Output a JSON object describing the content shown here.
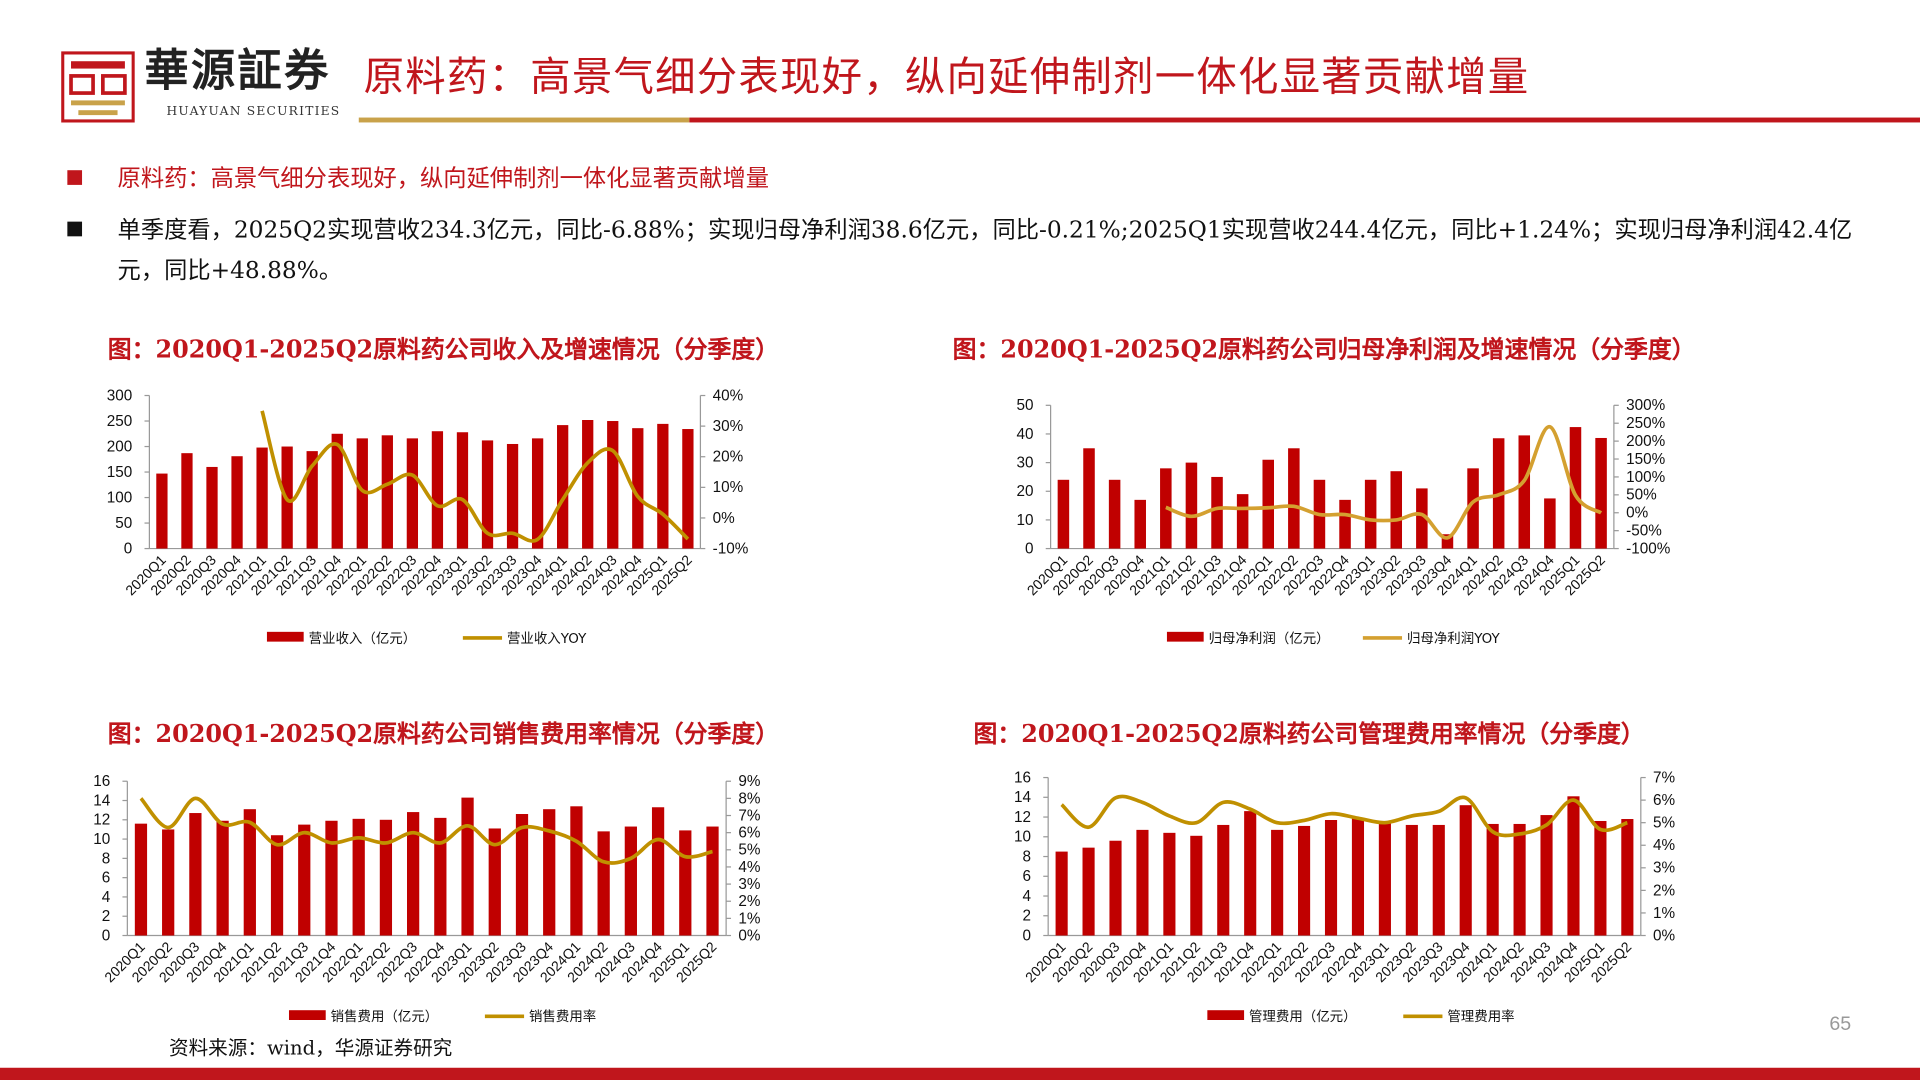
{
  "header": {
    "brand": "華源証券",
    "brand_en": "HUAYUAN SECURITIES",
    "title": "原料药：高景气细分表现好，纵向延伸制剂一体化显著贡献增量"
  },
  "bullets": [
    {
      "text": "原料药：高景气细分表现好，纵向延伸制剂一体化显著贡献增量"
    },
    {
      "text": "单季度看，2025Q2实现营收234.3亿元，同比-6.88%；实现归母净利润38.6亿元，同比-0.21%;2025Q1实现营收244.4亿元，同比+1.24%；实现归母净利润42.4亿元，同比+48.88%。"
    }
  ],
  "source": "资料来源：wind，华源证券研究",
  "page_number": "65",
  "colors": {
    "bar": "#c00000",
    "line": "#c09000",
    "line2": "#d4a030",
    "accent": "#c0161c"
  },
  "chart_data": [
    {
      "type": "bar+line",
      "title": "图：2020Q1-2025Q2原料药公司收入及增速情况（分季度）",
      "categories": [
        "2020Q1",
        "2020Q2",
        "2020Q3",
        "2020Q4",
        "2021Q1",
        "2021Q2",
        "2021Q3",
        "2021Q4",
        "2022Q1",
        "2022Q2",
        "2022Q3",
        "2022Q4",
        "2023Q1",
        "2023Q2",
        "2023Q3",
        "2023Q4",
        "2024Q1",
        "2024Q2",
        "2024Q3",
        "2024Q4",
        "2025Q1",
        "2025Q2"
      ],
      "series": [
        {
          "name": "营业收入（亿元）",
          "axis": "left",
          "kind": "bar",
          "values": [
            147,
            187,
            160,
            181,
            198,
            200,
            191,
            225,
            216,
            222,
            216,
            230,
            228,
            212,
            205,
            216,
            242,
            252,
            250,
            236,
            244.4,
            234.3
          ]
        },
        {
          "name": "营业收入YOY",
          "axis": "right",
          "kind": "line",
          "values": [
            null,
            null,
            null,
            null,
            35,
            6,
            17,
            24,
            9,
            11,
            14,
            4,
            6,
            -5,
            -5,
            -7,
            6,
            18,
            22,
            7,
            1.24,
            -6.88
          ]
        }
      ],
      "ylim": [
        0,
        300
      ],
      "ystep": 50,
      "y2lim": [
        -10,
        40
      ],
      "y2step": 10,
      "y2_suffix": "%"
    },
    {
      "type": "bar+line",
      "title": "图：2020Q1-2025Q2原料药公司归母净利润及增速情况（分季度）",
      "categories": [
        "2020Q1",
        "2020Q2",
        "2020Q3",
        "2020Q4",
        "2021Q1",
        "2021Q2",
        "2021Q3",
        "2021Q4",
        "2022Q1",
        "2022Q2",
        "2022Q3",
        "2022Q4",
        "2023Q1",
        "2023Q2",
        "2023Q3",
        "2023Q4",
        "2024Q1",
        "2024Q2",
        "2024Q3",
        "2024Q4",
        "2025Q1",
        "2025Q2"
      ],
      "series": [
        {
          "name": "归母净利润（亿元）",
          "axis": "left",
          "kind": "bar",
          "values": [
            24,
            35,
            24,
            17,
            28,
            30,
            25,
            19,
            31,
            35,
            24,
            17,
            24,
            27,
            21,
            5,
            28,
            38.5,
            39.5,
            17.5,
            42.4,
            38.6
          ]
        },
        {
          "name": "归母净利润YOY",
          "axis": "right",
          "kind": "line",
          "values": [
            null,
            null,
            null,
            null,
            15,
            -10,
            12,
            12,
            14,
            18,
            -5,
            -5,
            -20,
            -20,
            -5,
            -70,
            30,
            50,
            90,
            240,
            48.88,
            -0.21
          ]
        }
      ],
      "ylim": [
        0,
        50
      ],
      "ystep": 10,
      "y2lim": [
        -100,
        300
      ],
      "y2step": 50,
      "y2_suffix": "%"
    },
    {
      "type": "bar+line",
      "title": "图：2020Q1-2025Q2原料药公司销售费用率情况（分季度）",
      "categories": [
        "2020Q1",
        "2020Q2",
        "2020Q3",
        "2020Q4",
        "2021Q1",
        "2021Q2",
        "2021Q3",
        "2021Q4",
        "2022Q1",
        "2022Q2",
        "2022Q3",
        "2022Q4",
        "2023Q1",
        "2023Q2",
        "2023Q3",
        "2023Q4",
        "2024Q1",
        "2024Q2",
        "2024Q3",
        "2024Q4",
        "2025Q1",
        "2025Q2"
      ],
      "series": [
        {
          "name": "销售费用（亿元）",
          "axis": "left",
          "kind": "bar",
          "values": [
            11.6,
            11.0,
            12.7,
            11.9,
            13.1,
            10.4,
            11.5,
            11.9,
            12.1,
            12.0,
            12.8,
            12.2,
            14.3,
            11.1,
            12.6,
            13.1,
            13.4,
            10.8,
            11.3,
            13.3,
            10.9,
            11.3
          ]
        },
        {
          "name": "销售费用率",
          "axis": "right",
          "kind": "line",
          "values": [
            8.0,
            6.3,
            8.0,
            6.5,
            6.6,
            5.3,
            6.0,
            5.4,
            5.7,
            5.4,
            6.0,
            5.4,
            6.4,
            5.3,
            6.3,
            6.1,
            5.5,
            4.3,
            4.5,
            5.6,
            4.6,
            4.9
          ]
        }
      ],
      "ylim": [
        0,
        16
      ],
      "ystep": 2,
      "y2lim": [
        0,
        9
      ],
      "y2step": 1,
      "y2_suffix": "%"
    },
    {
      "type": "bar+line",
      "title": "图：2020Q1-2025Q2原料药公司管理费用率情况（分季度）",
      "categories": [
        "2020Q1",
        "2020Q2",
        "2020Q3",
        "2020Q4",
        "2021Q1",
        "2021Q2",
        "2021Q3",
        "2021Q4",
        "2022Q1",
        "2022Q2",
        "2022Q3",
        "2022Q4",
        "2023Q1",
        "2023Q2",
        "2023Q3",
        "2023Q4",
        "2024Q1",
        "2024Q2",
        "2024Q3",
        "2024Q4",
        "2025Q1",
        "2025Q2"
      ],
      "series": [
        {
          "name": "管理费用（亿元）",
          "axis": "left",
          "kind": "bar",
          "values": [
            8.5,
            8.9,
            9.6,
            10.7,
            10.4,
            10.1,
            11.2,
            12.6,
            10.7,
            11.1,
            11.7,
            11.9,
            11.6,
            11.2,
            11.2,
            13.2,
            11.3,
            11.3,
            12.2,
            14.1,
            11.6,
            11.8
          ]
        },
        {
          "name": "管理费用率",
          "axis": "right",
          "kind": "line",
          "values": [
            5.8,
            4.8,
            6.1,
            5.9,
            5.3,
            5.0,
            5.9,
            5.6,
            5.0,
            5.1,
            5.4,
            5.2,
            5.0,
            5.3,
            5.5,
            6.1,
            4.6,
            4.5,
            4.9,
            6.0,
            4.7,
            5.0
          ]
        }
      ],
      "ylim": [
        0,
        16
      ],
      "ystep": 2,
      "y2lim": [
        0,
        7
      ],
      "y2step": 1,
      "y2_suffix": "%"
    }
  ]
}
